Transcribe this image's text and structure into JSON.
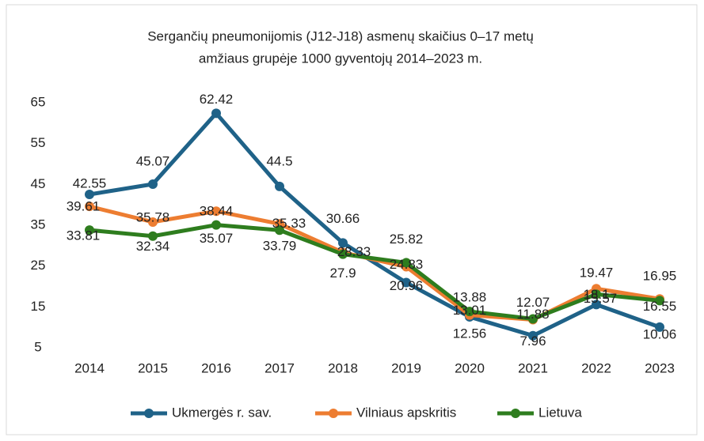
{
  "chart_data": {
    "type": "line",
    "title": [
      "Sergančių pneumonijomis (J12-J18) asmenų skaičius 0–17 metų",
      "amžiaus grupėje 1000 gyventojų 2014–2023 m."
    ],
    "categories": [
      "2014",
      "2015",
      "2016",
      "2017",
      "2018",
      "2019",
      "2020",
      "2021",
      "2022",
      "2023"
    ],
    "series": [
      {
        "name": "Ukmergės r. sav.",
        "color": "#1f6288",
        "values": [
          42.55,
          45.07,
          62.42,
          44.5,
          30.66,
          20.96,
          12.56,
          7.96,
          15.57,
          10.06
        ]
      },
      {
        "name": "Vilniaus apskritis",
        "color": "#ed7d31",
        "values": [
          39.61,
          35.78,
          38.44,
          35.33,
          28.33,
          24.83,
          13.01,
          11.88,
          19.47,
          16.95
        ]
      },
      {
        "name": "Lietuva",
        "color": "#2e7d1e",
        "values": [
          33.81,
          32.34,
          35.07,
          33.79,
          27.9,
          25.82,
          13.88,
          12.07,
          18.1,
          16.55
        ]
      }
    ],
    "ylim": [
      5,
      65
    ],
    "yticks": [
      5,
      15,
      25,
      35,
      45,
      55,
      65
    ],
    "grid": false,
    "legend": "bottom"
  }
}
